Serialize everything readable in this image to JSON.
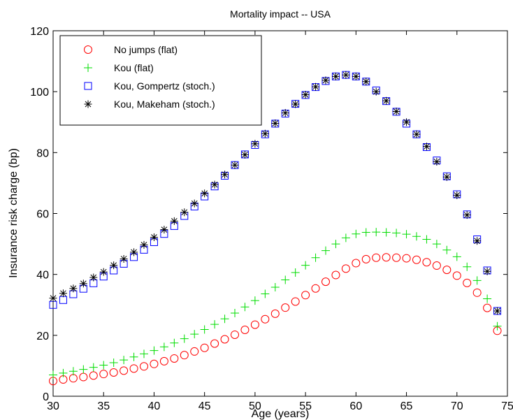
{
  "chart_data": {
    "type": "scatter",
    "title": "Mortality impact -- USA",
    "xlabel": "Age (years)",
    "ylabel": "Insurance risk charge (bp)",
    "xlim": [
      30,
      75
    ],
    "ylim": [
      0,
      120
    ],
    "xticks": [
      30,
      35,
      40,
      45,
      50,
      55,
      60,
      65,
      70,
      75
    ],
    "yticks": [
      0,
      20,
      40,
      60,
      80,
      100,
      120
    ],
    "grid": false,
    "legend_position": "top-left",
    "x": [
      30,
      31,
      32,
      33,
      34,
      35,
      36,
      37,
      38,
      39,
      40,
      41,
      42,
      43,
      44,
      45,
      46,
      47,
      48,
      49,
      50,
      51,
      52,
      53,
      54,
      55,
      56,
      57,
      58,
      59,
      60,
      61,
      62,
      63,
      64,
      65,
      66,
      67,
      68,
      69,
      70,
      71,
      72,
      73,
      74
    ],
    "series": [
      {
        "name": "No jumps (flat)",
        "marker": "circle",
        "color": "#ff0000",
        "values": [
          5,
          5.5,
          5.9,
          6.3,
          6.8,
          7.3,
          7.8,
          8.4,
          9.1,
          9.8,
          10.6,
          11.5,
          12.4,
          13.5,
          14.7,
          15.9,
          17.3,
          18.7,
          20.2,
          21.8,
          23.5,
          25.3,
          27.1,
          29.1,
          31.1,
          33.2,
          35.4,
          37.6,
          39.8,
          41.9,
          43.7,
          45.0,
          45.5,
          45.6,
          45.5,
          45.3,
          44.8,
          44.0,
          42.9,
          41.5,
          39.6,
          37.2,
          34.0,
          29.0,
          21.5
        ]
      },
      {
        "name": "Kou (flat)",
        "marker": "plus",
        "color": "#00dd00",
        "values": [
          7,
          7.6,
          8.2,
          8.8,
          9.5,
          10.2,
          11.0,
          11.9,
          12.9,
          13.9,
          15.0,
          16.2,
          17.5,
          18.9,
          20.4,
          21.9,
          23.6,
          25.4,
          27.3,
          29.3,
          31.4,
          33.6,
          35.8,
          38.2,
          40.6,
          43.0,
          45.5,
          47.8,
          50.0,
          52.0,
          53.3,
          53.8,
          53.9,
          53.8,
          53.6,
          53.2,
          52.5,
          51.5,
          50.0,
          48.0,
          45.8,
          42.5,
          38.0,
          32.0,
          23.0
        ]
      },
      {
        "name": "Kou, Gompertz (stoch.)",
        "marker": "square",
        "color": "#0000ff",
        "values": [
          30,
          31.6,
          33.5,
          35.3,
          37.1,
          39.3,
          41.3,
          43.5,
          45.7,
          48.1,
          50.6,
          53.3,
          55.9,
          59.2,
          62.3,
          65.6,
          68.9,
          72.4,
          75.9,
          79.4,
          82.5,
          86.0,
          89.5,
          92.8,
          96.0,
          98.9,
          101.5,
          103.5,
          105.0,
          105.5,
          105.0,
          103.3,
          100.4,
          96.9,
          93.4,
          89.5,
          86.0,
          81.8,
          77.4,
          72.2,
          66.3,
          59.7,
          51.5,
          41.3,
          28.0
        ]
      },
      {
        "name": "Kou, Makeham (stoch.)",
        "marker": "asterisk",
        "color": "#000000",
        "values": [
          32.2,
          33.8,
          35.4,
          37.0,
          39.0,
          40.8,
          43.0,
          45.1,
          47.3,
          49.7,
          52.2,
          54.7,
          57.5,
          60.4,
          63.3,
          66.6,
          69.5,
          72.8,
          75.9,
          79.3,
          82.9,
          86.2,
          89.6,
          93.0,
          95.9,
          99.0,
          101.6,
          103.7,
          105.0,
          105.5,
          105.0,
          103.3,
          100.0,
          97.0,
          93.5,
          90.0,
          86.0,
          82.0,
          77.0,
          72.0,
          66.0,
          59.5,
          51.0,
          41.0,
          28.0
        ]
      }
    ]
  }
}
